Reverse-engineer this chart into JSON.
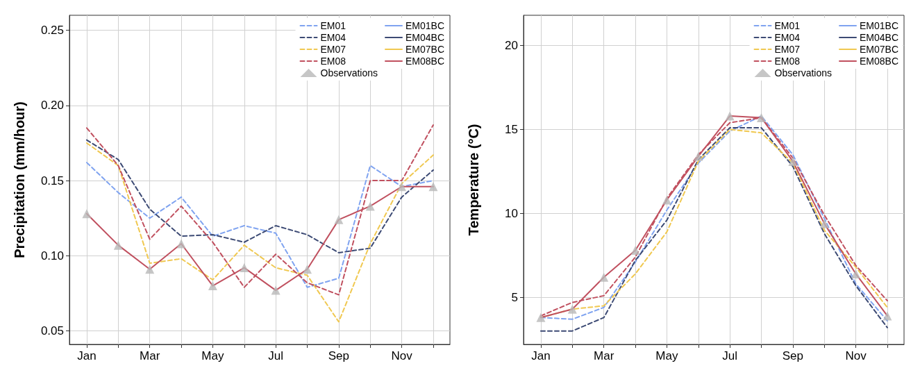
{
  "chart_data": [
    {
      "type": "line",
      "ylabel": "Precipitation (mm/hour)",
      "categories": [
        "Jan",
        null,
        "Mar",
        null,
        "May",
        null,
        "Jul",
        null,
        "Sep",
        null,
        "Nov",
        null
      ],
      "ylim": [
        0.041,
        0.26
      ],
      "yticks": [
        0.05,
        {
          "value": 0.1,
          "label": "0.10"
        },
        0.15,
        {
          "value": 0.2,
          "label": "0.20"
        },
        0.25
      ],
      "grid": true,
      "legend": "top right",
      "series": [
        {
          "name": "EM01",
          "color": "#7fa3f0",
          "line_style": "dashed",
          "marker": "none",
          "values": [
            0.162,
            0.142,
            0.125,
            0.139,
            0.113,
            0.12,
            0.115,
            0.079,
            0.085,
            0.16,
            0.146,
            0.15
          ]
        },
        {
          "name": "EM04",
          "color": "#3c4a74",
          "line_style": "dashed",
          "marker": "none",
          "values": [
            0.177,
            0.164,
            0.131,
            0.113,
            0.114,
            0.109,
            0.12,
            0.114,
            0.102,
            0.105,
            0.139,
            0.157
          ]
        },
        {
          "name": "EM07",
          "color": "#f0c850",
          "line_style": "dashed",
          "marker": "none",
          "values": [
            0.175,
            0.16,
            0.095,
            0.098,
            0.084,
            0.107,
            0.092,
            0.087,
            0.056,
            0.108,
            0.148,
            0.167
          ]
        },
        {
          "name": "EM08",
          "color": "#c0505f",
          "line_style": "dashed",
          "marker": "none",
          "values": [
            0.185,
            0.16,
            0.111,
            0.133,
            0.109,
            0.079,
            0.101,
            0.082,
            0.074,
            0.15,
            0.15,
            0.187
          ]
        },
        {
          "name": "Observations",
          "type": "scatter",
          "color": "#b8b8b8",
          "marker": "triangle",
          "values": [
            0.128,
            0.107,
            0.091,
            0.108,
            0.08,
            0.092,
            0.077,
            0.091,
            0.124,
            0.133,
            0.146,
            0.146
          ]
        },
        {
          "name": "EM01BC",
          "color": "#7fa3f0",
          "line_style": "solid",
          "marker": "none",
          "values": [
            null,
            null,
            null,
            null,
            null,
            null,
            null,
            null,
            null,
            null,
            null,
            null
          ]
        },
        {
          "name": "EM04BC",
          "color": "#3c4a74",
          "line_style": "solid",
          "marker": "none",
          "values": [
            null,
            null,
            null,
            null,
            null,
            null,
            null,
            null,
            null,
            null,
            null,
            null
          ]
        },
        {
          "name": "EM07BC",
          "color": "#f0c850",
          "line_style": "solid",
          "marker": "none",
          "values": [
            null,
            null,
            null,
            null,
            null,
            null,
            null,
            null,
            null,
            null,
            null,
            null
          ]
        },
        {
          "name": "EM08BC",
          "color": "#c0505f",
          "line_style": "solid",
          "marker": "none",
          "values": [
            0.128,
            0.107,
            0.091,
            0.108,
            0.08,
            0.092,
            0.077,
            0.091,
            0.124,
            0.133,
            0.146,
            0.146
          ]
        }
      ]
    },
    {
      "type": "line",
      "ylabel": "Temperature (°C)",
      "categories": [
        "Jan",
        null,
        "Mar",
        null,
        "May",
        null,
        "Jul",
        null,
        "Sep",
        null,
        "Nov",
        null
      ],
      "ylim": [
        2.2,
        21.8
      ],
      "yticks": [
        5,
        10,
        15,
        20
      ],
      "grid": true,
      "legend": "top right",
      "series": [
        {
          "name": "EM01",
          "color": "#7fa3f0",
          "line_style": "dashed",
          "marker": "none",
          "values": [
            3.8,
            3.7,
            4.4,
            7.1,
            10.2,
            13.0,
            14.9,
            15.8,
            13.5,
            9.7,
            5.8,
            3.6
          ]
        },
        {
          "name": "EM04",
          "color": "#3c4a74",
          "line_style": "dashed",
          "marker": "none",
          "values": [
            3.0,
            3.0,
            3.8,
            7.2,
            9.6,
            13.2,
            15.1,
            15.1,
            12.8,
            8.8,
            5.7,
            3.2
          ]
        },
        {
          "name": "EM07",
          "color": "#f0c850",
          "line_style": "dashed",
          "marker": "none",
          "values": [
            3.8,
            4.3,
            4.5,
            6.4,
            8.9,
            13.1,
            15.0,
            14.8,
            13.0,
            9.0,
            6.8,
            4.4
          ]
        },
        {
          "name": "EM08",
          "color": "#c0505f",
          "line_style": "dashed",
          "marker": "none",
          "values": [
            3.9,
            4.7,
            5.1,
            7.4,
            10.9,
            13.5,
            15.4,
            15.7,
            13.3,
            9.9,
            6.9,
            4.8
          ]
        },
        {
          "name": "Observations",
          "type": "scatter",
          "color": "#b8b8b8",
          "marker": "triangle",
          "values": [
            3.8,
            4.3,
            6.2,
            7.8,
            10.8,
            13.4,
            15.8,
            15.7,
            13.1,
            9.4,
            6.4,
            3.9
          ]
        },
        {
          "name": "EM01BC",
          "color": "#7fa3f0",
          "line_style": "solid",
          "marker": "none",
          "values": [
            null,
            null,
            null,
            null,
            null,
            null,
            null,
            null,
            null,
            null,
            null,
            null
          ]
        },
        {
          "name": "EM04BC",
          "color": "#3c4a74",
          "line_style": "solid",
          "marker": "none",
          "values": [
            null,
            null,
            null,
            null,
            null,
            null,
            null,
            null,
            null,
            null,
            null,
            null
          ]
        },
        {
          "name": "EM07BC",
          "color": "#f0c850",
          "line_style": "solid",
          "marker": "none",
          "values": [
            null,
            null,
            null,
            null,
            null,
            null,
            null,
            null,
            null,
            null,
            null,
            null
          ]
        },
        {
          "name": "EM08BC",
          "color": "#c0505f",
          "line_style": "solid",
          "marker": "none",
          "values": [
            3.8,
            4.3,
            6.2,
            7.8,
            10.8,
            13.4,
            15.8,
            15.7,
            13.1,
            9.4,
            6.4,
            3.9
          ]
        }
      ]
    }
  ]
}
